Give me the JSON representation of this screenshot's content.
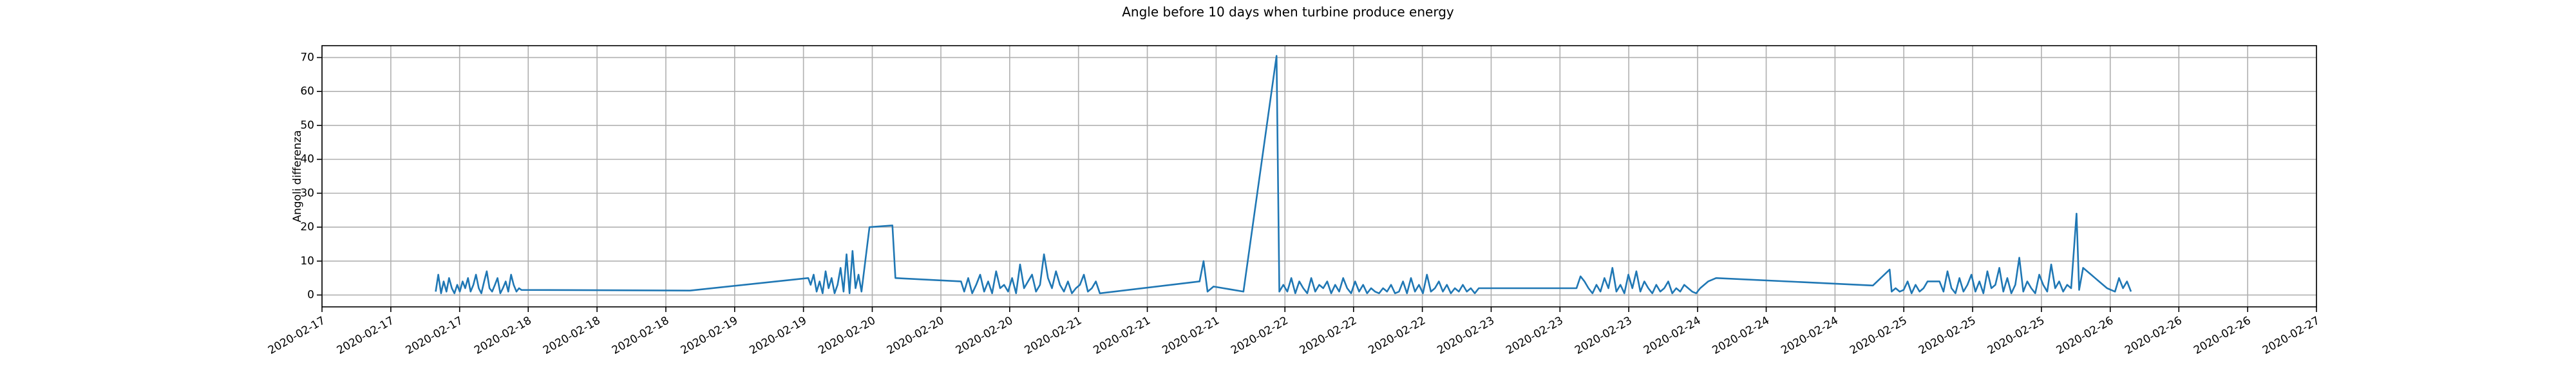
{
  "chart_data": {
    "type": "line",
    "title": "Angle before 10 days when turbine produce energy",
    "y_label": "Angoli differenza",
    "grid": true,
    "xlim": [
      17,
      27
    ],
    "ylim": [
      -3.5,
      73.5
    ],
    "yticks": [
      0,
      10,
      20,
      30,
      40,
      50,
      60,
      70
    ],
    "xticks": [
      {
        "value": 17,
        "label": "2020-02-17"
      },
      {
        "value": 17.345,
        "label": "2020-02-17"
      },
      {
        "value": 17.69,
        "label": "2020-02-17"
      },
      {
        "value": 18.034,
        "label": "2020-02-18"
      },
      {
        "value": 18.379,
        "label": "2020-02-18"
      },
      {
        "value": 18.724,
        "label": "2020-02-18"
      },
      {
        "value": 19.069,
        "label": "2020-02-19"
      },
      {
        "value": 19.414,
        "label": "2020-02-19"
      },
      {
        "value": 19.759,
        "label": "2020-02-20"
      },
      {
        "value": 20.103,
        "label": "2020-02-20"
      },
      {
        "value": 20.448,
        "label": "2020-02-20"
      },
      {
        "value": 20.793,
        "label": "2020-02-21"
      },
      {
        "value": 21.138,
        "label": "2020-02-21"
      },
      {
        "value": 21.483,
        "label": "2020-02-21"
      },
      {
        "value": 21.828,
        "label": "2020-02-22"
      },
      {
        "value": 22.172,
        "label": "2020-02-22"
      },
      {
        "value": 22.517,
        "label": "2020-02-22"
      },
      {
        "value": 22.862,
        "label": "2020-02-23"
      },
      {
        "value": 23.207,
        "label": "2020-02-23"
      },
      {
        "value": 23.552,
        "label": "2020-02-23"
      },
      {
        "value": 23.897,
        "label": "2020-02-24"
      },
      {
        "value": 24.241,
        "label": "2020-02-24"
      },
      {
        "value": 24.586,
        "label": "2020-02-24"
      },
      {
        "value": 24.931,
        "label": "2020-02-25"
      },
      {
        "value": 25.276,
        "label": "2020-02-25"
      },
      {
        "value": 25.621,
        "label": "2020-02-25"
      },
      {
        "value": 25.966,
        "label": "2020-02-26"
      },
      {
        "value": 26.31,
        "label": "2020-02-26"
      },
      {
        "value": 26.655,
        "label": "2020-02-26"
      },
      {
        "value": 27,
        "label": "2020-02-27"
      }
    ],
    "x": [
      17.57,
      17.583,
      17.597,
      17.61,
      17.624,
      17.637,
      17.651,
      17.664,
      17.678,
      17.691,
      17.705,
      17.718,
      17.732,
      17.745,
      17.759,
      17.772,
      17.786,
      17.799,
      17.813,
      17.826,
      17.84,
      17.853,
      17.867,
      17.88,
      17.894,
      17.907,
      17.921,
      17.934,
      17.948,
      17.961,
      17.975,
      17.988,
      18,
      18.845,
      19.438,
      19.45,
      19.465,
      19.48,
      19.495,
      19.51,
      19.525,
      19.54,
      19.555,
      19.57,
      19.585,
      19.6,
      19.615,
      19.63,
      19.645,
      19.66,
      19.675,
      19.69,
      19.705,
      19.745,
      19.86,
      19.875,
      20.204,
      20.22,
      20.24,
      20.26,
      20.28,
      20.3,
      20.32,
      20.34,
      20.36,
      20.38,
      20.4,
      20.42,
      20.44,
      20.46,
      20.48,
      20.5,
      20.52,
      20.54,
      20.56,
      20.58,
      20.6,
      20.62,
      20.64,
      20.66,
      20.68,
      20.7,
      20.72,
      20.74,
      20.76,
      20.78,
      20.8,
      20.82,
      20.84,
      20.86,
      20.88,
      20.9,
      21.4,
      21.42,
      21.44,
      21.47,
      21.62,
      21.786,
      21.8,
      21.82,
      21.84,
      21.86,
      21.88,
      21.9,
      21.92,
      21.94,
      21.96,
      21.98,
      22,
      22.02,
      22.04,
      22.06,
      22.08,
      22.1,
      22.12,
      22.14,
      22.16,
      22.18,
      22.2,
      22.22,
      22.24,
      22.26,
      22.28,
      22.3,
      22.32,
      22.34,
      22.36,
      22.38,
      22.4,
      22.42,
      22.44,
      22.46,
      22.48,
      22.5,
      22.52,
      22.54,
      22.56,
      22.58,
      22.6,
      22.62,
      22.64,
      22.66,
      22.68,
      22.7,
      22.72,
      22.74,
      22.76,
      22.78,
      22.8,
      23.29,
      23.31,
      23.33,
      23.35,
      23.37,
      23.39,
      23.41,
      23.43,
      23.45,
      23.47,
      23.49,
      23.51,
      23.53,
      23.55,
      23.57,
      23.59,
      23.61,
      23.63,
      23.65,
      23.67,
      23.69,
      23.71,
      23.73,
      23.75,
      23.77,
      23.79,
      23.81,
      23.83,
      23.85,
      23.87,
      23.89,
      23.91,
      23.93,
      23.95,
      23.99,
      24.776,
      24.86,
      24.87,
      24.89,
      24.91,
      24.93,
      24.95,
      24.97,
      24.99,
      25.01,
      25.03,
      25.05,
      25.07,
      25.09,
      25.11,
      25.13,
      25.15,
      25.17,
      25.19,
      25.21,
      25.23,
      25.25,
      25.27,
      25.29,
      25.31,
      25.33,
      25.35,
      25.37,
      25.39,
      25.41,
      25.43,
      25.45,
      25.47,
      25.49,
      25.51,
      25.53,
      25.55,
      25.57,
      25.59,
      25.61,
      25.63,
      25.65,
      25.67,
      25.69,
      25.71,
      25.73,
      25.75,
      25.77,
      25.797,
      25.81,
      25.83,
      25.85,
      25.87,
      25.89,
      25.91,
      25.93,
      25.95,
      25.97,
      25.99,
      26.01,
      26.03,
      26.05,
      26.07
    ],
    "series": [
      {
        "color": "#1f77b4",
        "values": [
          1,
          6,
          0.5,
          4,
          1,
          5,
          2,
          0.5,
          3,
          1,
          4,
          2,
          5,
          1,
          3,
          6,
          2,
          0.5,
          4,
          7,
          2,
          1,
          3,
          5,
          0.5,
          2,
          4,
          1,
          6,
          3,
          1,
          2,
          1.5,
          1.3,
          5,
          3,
          6,
          1,
          4,
          0.5,
          7,
          2,
          5,
          0.5,
          3,
          8,
          1,
          12,
          0.5,
          13,
          2,
          6,
          1,
          20,
          20.5,
          5,
          4,
          1,
          5,
          0.5,
          3,
          6,
          1,
          4,
          0.5,
          7,
          2,
          3,
          1,
          5,
          0.5,
          9,
          2,
          4,
          6,
          1,
          3,
          12,
          5,
          2,
          7,
          3,
          1,
          4,
          0.5,
          2,
          3,
          6,
          1,
          2,
          4,
          0.5,
          4,
          10,
          1,
          2.5,
          1,
          70.5,
          1,
          3,
          1,
          5,
          0.5,
          4,
          2,
          0.5,
          5,
          1,
          3,
          2,
          4,
          0.5,
          3,
          1,
          5,
          2,
          0.5,
          4,
          1,
          3,
          0.5,
          2,
          1,
          0.5,
          2,
          1,
          3,
          0.5,
          1,
          4,
          0.5,
          5,
          1,
          3,
          0.5,
          6,
          1,
          2,
          4,
          1,
          3,
          0.5,
          2,
          1,
          3,
          1,
          2,
          0.5,
          2,
          2,
          5.5,
          4,
          2,
          0.5,
          3,
          1,
          5,
          2,
          8,
          1,
          3,
          0.5,
          6,
          2,
          7,
          1,
          4,
          2,
          0.5,
          3,
          1,
          2,
          4,
          0.5,
          2,
          1,
          3,
          2,
          1,
          0.5,
          2,
          3,
          4,
          5,
          2.8,
          7.5,
          1,
          2,
          1,
          1.5,
          4,
          0.5,
          3,
          1,
          2,
          4,
          4,
          4,
          4,
          1,
          7,
          2,
          0.5,
          5,
          1,
          3,
          6,
          1,
          4,
          0.5,
          7,
          2,
          3,
          8,
          1,
          5,
          0.5,
          3,
          11,
          1,
          4,
          2,
          0.5,
          6,
          3,
          1,
          9,
          2,
          4,
          1,
          3,
          2,
          24,
          1.5,
          8,
          7,
          6,
          5,
          4,
          3,
          2,
          1.5,
          1,
          5,
          2,
          4,
          1
        ]
      }
    ]
  }
}
